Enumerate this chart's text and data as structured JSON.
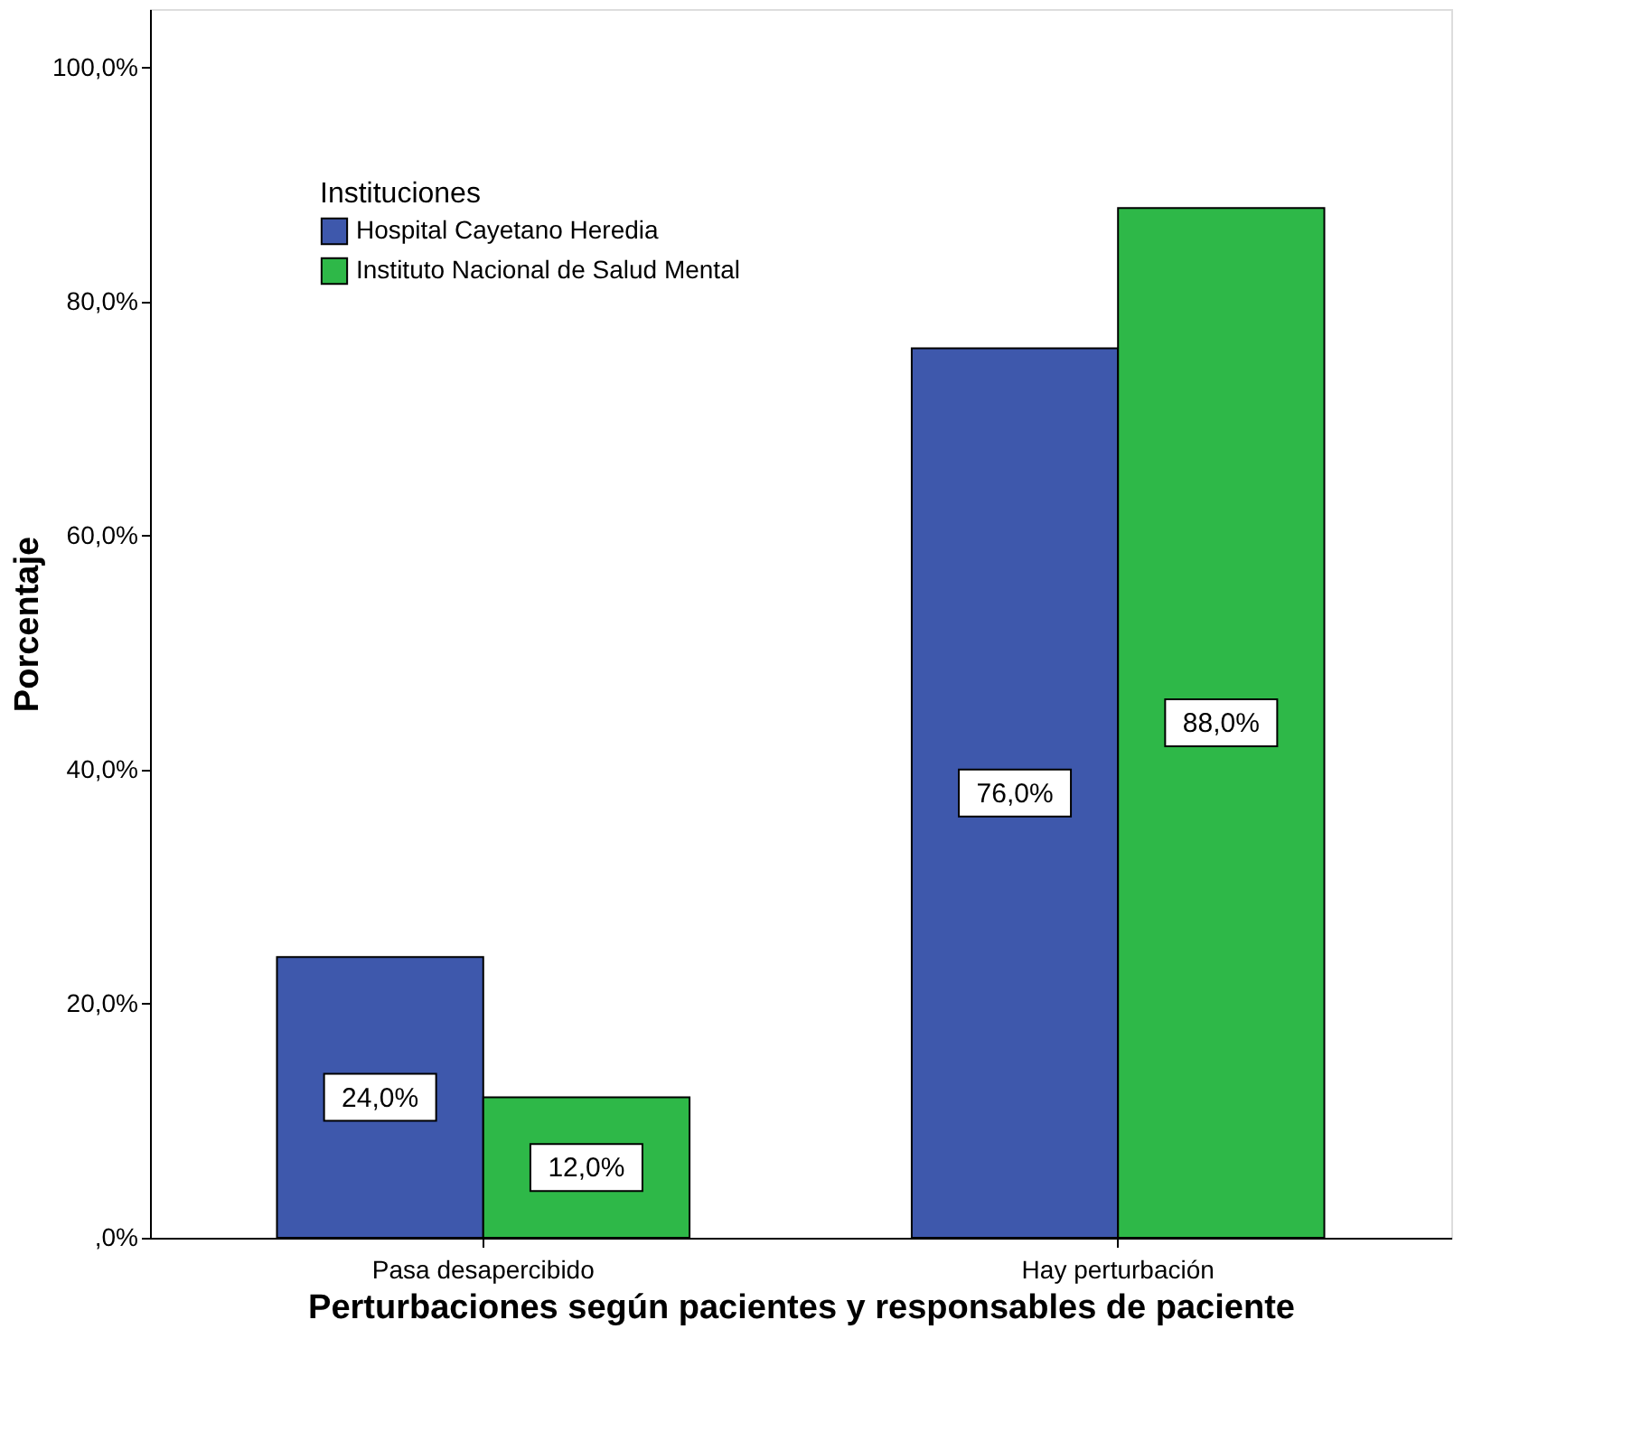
{
  "chart_data": {
    "type": "bar",
    "xlabel": "Perturbaciones según pacientes y responsables de paciente",
    "ylabel": "Porcentaje",
    "legend_title": "Instituciones",
    "categories": [
      "Pasa desapercibido",
      "Hay perturbación"
    ],
    "series": [
      {
        "name": "Hospital Cayetano Heredia",
        "color": "#3e58ac",
        "values": [
          24,
          76
        ],
        "value_labels": [
          "24,0%",
          "76,0%"
        ]
      },
      {
        "name": "Instituto Nacional de Salud Mental",
        "color": "#2eb848",
        "values": [
          12,
          88
        ],
        "value_labels": [
          "12,0%",
          "88,0%"
        ]
      }
    ],
    "ylim": [
      0,
      105
    ],
    "yticks": [
      {
        "value": 0,
        "label": ",0%"
      },
      {
        "value": 20,
        "label": "20,0%"
      },
      {
        "value": 40,
        "label": "40,0%"
      },
      {
        "value": 60,
        "label": "60,0%"
      },
      {
        "value": 80,
        "label": "80,0%"
      },
      {
        "value": 100,
        "label": "100,0%"
      }
    ],
    "grid": false,
    "legend": "top left"
  }
}
